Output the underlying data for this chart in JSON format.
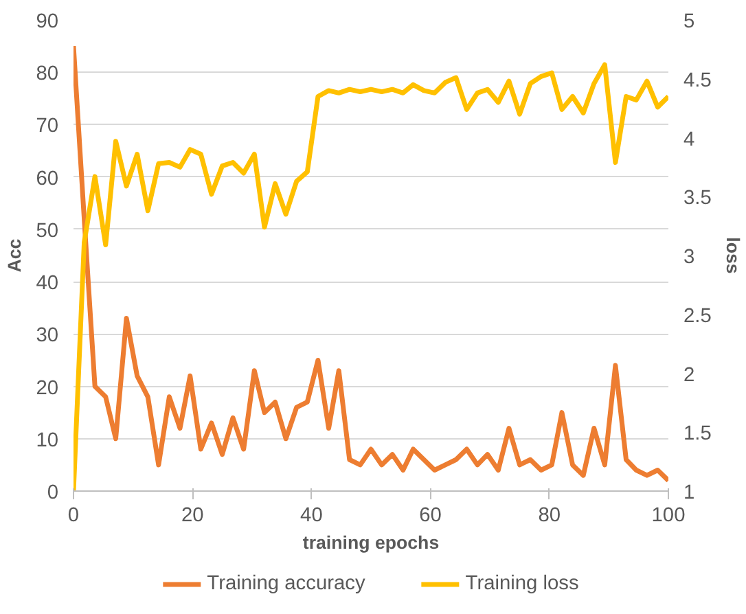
{
  "chart_data": {
    "type": "line",
    "xlabel": "training epochs",
    "ylabel": "Acc",
    "y2label": "loss",
    "x": [
      0,
      1.8,
      3.6,
      5.4,
      7.1,
      8.9,
      10.7,
      12.5,
      14.3,
      16.1,
      17.9,
      19.6,
      21.4,
      23.2,
      25.0,
      26.8,
      28.6,
      30.4,
      32.1,
      33.9,
      35.7,
      37.5,
      39.3,
      41.1,
      42.9,
      44.6,
      46.4,
      48.2,
      50.0,
      51.8,
      53.6,
      55.4,
      57.1,
      58.9,
      60.7,
      62.5,
      64.3,
      66.1,
      67.9,
      69.6,
      71.4,
      73.2,
      75.0,
      76.8,
      78.6,
      80.4,
      82.1,
      83.9,
      85.7,
      87.5,
      89.3,
      91.1,
      92.9,
      94.6,
      96.4,
      98.2,
      100.0
    ],
    "series": [
      {
        "name": "Training accuracy",
        "color": "#ed7d31",
        "values": [
          85,
          52,
          20,
          18,
          10,
          33,
          22,
          18,
          5,
          18,
          12,
          22,
          8,
          13,
          7,
          14,
          8,
          23,
          15,
          17,
          10,
          16,
          17,
          25,
          12,
          23,
          6,
          5,
          8,
          5,
          7,
          4,
          8,
          6,
          4,
          5,
          6,
          8,
          5,
          7,
          4,
          12,
          5,
          6,
          4,
          5,
          15,
          5,
          3,
          12,
          5,
          24,
          6,
          4,
          3,
          4,
          2
        ]
      },
      {
        "name": "Training loss",
        "color": "#ffc000",
        "axis": "y2",
        "values": [
          1.0,
          3.11,
          3.67,
          3.09,
          3.97,
          3.59,
          3.86,
          3.38,
          3.78,
          3.79,
          3.75,
          3.9,
          3.86,
          3.52,
          3.76,
          3.79,
          3.7,
          3.86,
          3.24,
          3.61,
          3.35,
          3.63,
          3.71,
          4.35,
          4.4,
          4.38,
          4.41,
          4.39,
          4.41,
          4.39,
          4.41,
          4.38,
          4.45,
          4.4,
          4.38,
          4.47,
          4.51,
          4.24,
          4.38,
          4.41,
          4.3,
          4.48,
          4.2,
          4.46,
          4.52,
          4.55,
          4.24,
          4.35,
          4.21,
          4.46,
          4.62,
          3.79,
          4.35,
          4.32,
          4.48,
          4.26,
          4.35
        ]
      }
    ],
    "xlim": [
      0,
      100
    ],
    "xticks": [
      0,
      20,
      40,
      60,
      80,
      100
    ],
    "ylim": [
      0,
      90
    ],
    "yticks": [
      0,
      10,
      20,
      30,
      40,
      50,
      60,
      70,
      80,
      90
    ],
    "y2lim": [
      1,
      5
    ],
    "y2ticks": [
      1,
      1.5,
      2,
      2.5,
      3,
      3.5,
      4,
      4.5,
      5
    ],
    "grid": "y",
    "legend": "bottom",
    "marker": "none",
    "line_style": "solid"
  }
}
